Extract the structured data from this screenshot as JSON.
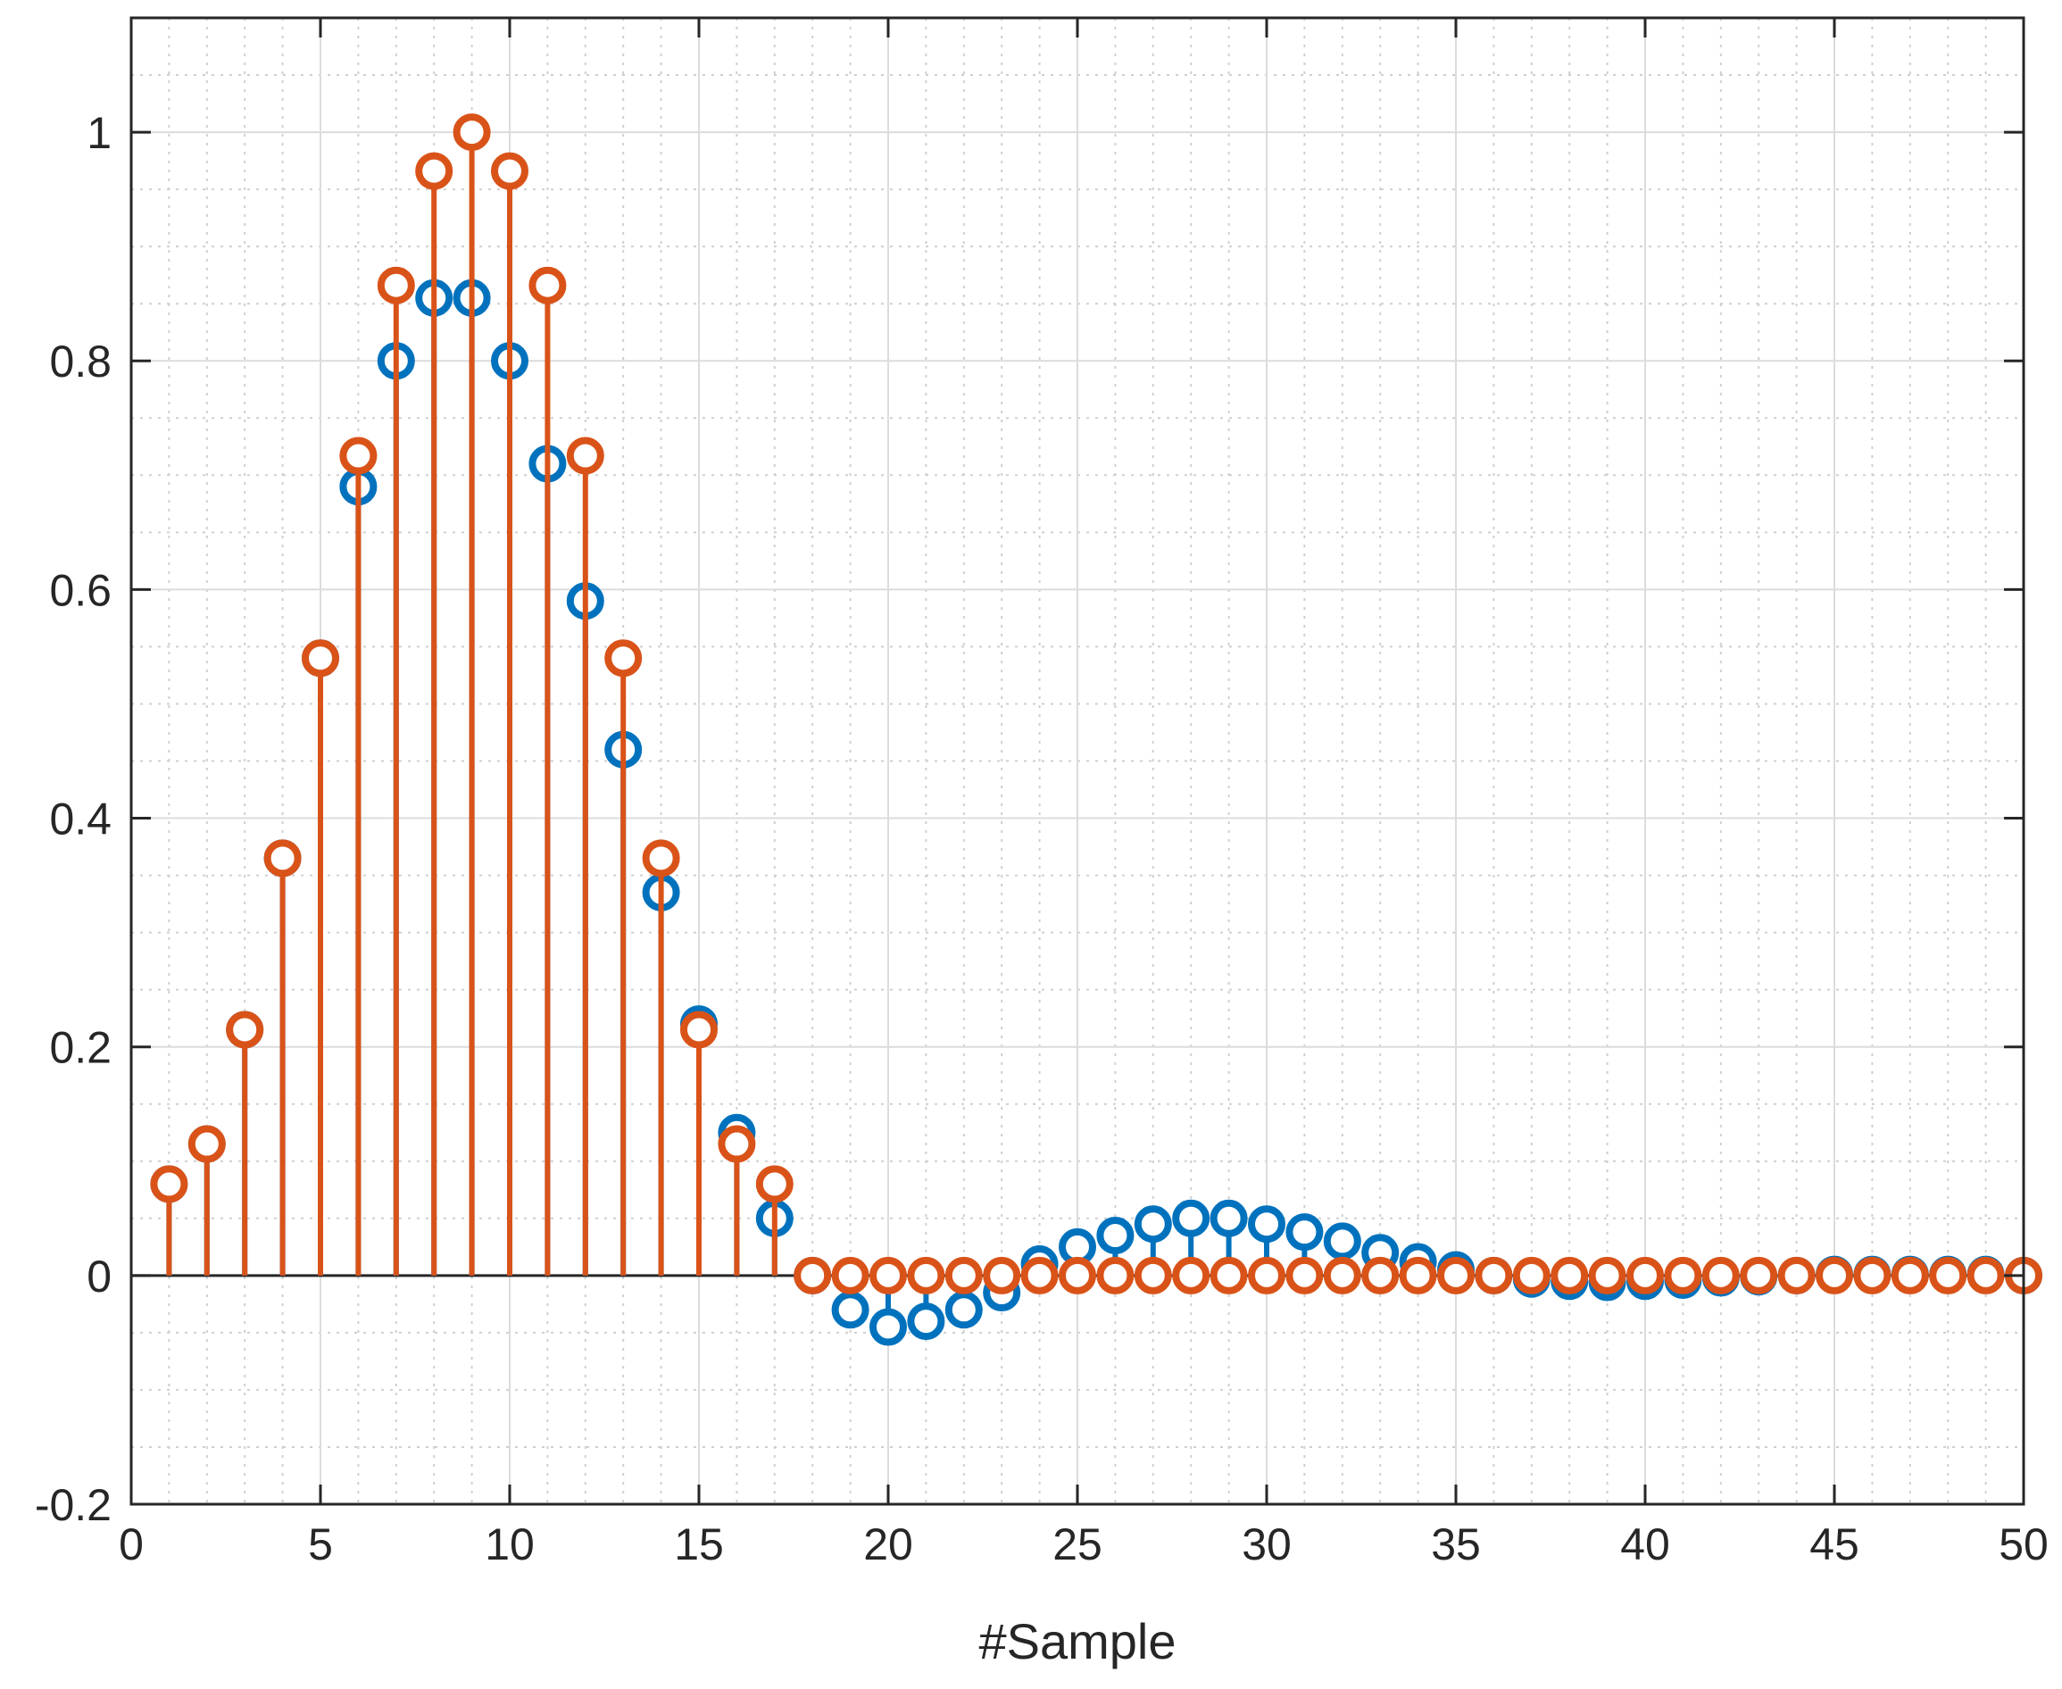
{
  "chart_data": {
    "type": "stem",
    "title": "",
    "xlabel": "#Sample",
    "ylabel": "",
    "xlim": [
      0,
      50
    ],
    "ylim": [
      -0.2,
      1.1
    ],
    "xticks": [
      0,
      5,
      10,
      15,
      20,
      25,
      30,
      35,
      40,
      45,
      50
    ],
    "yticks": [
      -0.2,
      0,
      0.2,
      0.4,
      0.6,
      0.8,
      1
    ],
    "ytick_labels": [
      "-0.2",
      "0",
      "0.2",
      "0.4",
      "0.6",
      "0.8",
      "1"
    ],
    "xtick_labels": [
      "0",
      "5",
      "10",
      "15",
      "20",
      "25",
      "30",
      "35",
      "40",
      "45",
      "50"
    ],
    "grid": "on (major solid, minor dotted)",
    "legend": "none",
    "x": [
      1,
      2,
      3,
      4,
      5,
      6,
      7,
      8,
      9,
      10,
      11,
      12,
      13,
      14,
      15,
      16,
      17,
      18,
      19,
      20,
      21,
      22,
      23,
      24,
      25,
      26,
      27,
      28,
      29,
      30,
      31,
      32,
      33,
      34,
      35,
      36,
      37,
      38,
      39,
      40,
      41,
      42,
      43,
      44,
      45,
      46,
      47,
      48,
      49,
      50
    ],
    "series": [
      {
        "color": "#0072BD",
        "values": [
          0.08,
          0.115,
          0.215,
          0.365,
          0.54,
          0.69,
          0.8,
          0.855,
          0.855,
          0.8,
          0.71,
          0.59,
          0.46,
          0.335,
          0.22,
          0.125,
          0.05,
          0.0,
          -0.03,
          -0.045,
          -0.04,
          -0.03,
          -0.015,
          0.01,
          0.025,
          0.035,
          0.045,
          0.05,
          0.05,
          0.045,
          0.038,
          0.03,
          0.02,
          0.012,
          0.005,
          0.0,
          -0.003,
          -0.005,
          -0.006,
          -0.005,
          -0.004,
          -0.002,
          -0.001,
          0.0,
          0.001,
          0.001,
          0.001,
          0.001,
          0.001,
          0.0
        ]
      },
      {
        "color": "#D95319",
        "values": [
          0.08,
          0.115,
          0.215,
          0.365,
          0.54,
          0.717,
          0.866,
          0.966,
          1.0,
          0.966,
          0.866,
          0.717,
          0.54,
          0.365,
          0.215,
          0.115,
          0.08,
          0,
          0,
          0,
          0,
          0,
          0,
          0,
          0,
          0,
          0,
          0,
          0,
          0,
          0,
          0,
          0,
          0,
          0,
          0,
          0,
          0,
          0,
          0,
          0,
          0,
          0,
          0,
          0,
          0,
          0,
          0,
          0,
          0
        ]
      }
    ]
  }
}
